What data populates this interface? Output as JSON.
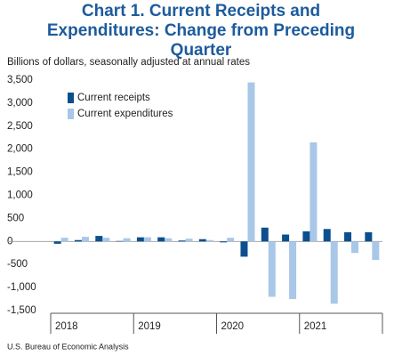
{
  "chart_data": {
    "type": "bar",
    "title": "Chart 1. Current Receipts and Expenditures: Change from Preceding Quarter",
    "subtitle": "Billions of dollars, seasonally adjusted at annual rates",
    "source": "U.S. Bureau of Economic Analysis",
    "categories": [
      null,
      null,
      null,
      null,
      null,
      null,
      null,
      null,
      null,
      null,
      null,
      null,
      null,
      null,
      null,
      null
    ],
    "groups": [
      "2018",
      "2019",
      "2020",
      "2021"
    ],
    "series": [
      {
        "name": "Current receipts",
        "color": "#0b4f8f",
        "values": [
          -50,
          30,
          120,
          10,
          90,
          90,
          20,
          50,
          -20,
          -330,
          300,
          150,
          220,
          270,
          200,
          200
        ]
      },
      {
        "name": "Current expenditures",
        "color": "#a9c7e8",
        "values": [
          80,
          100,
          80,
          70,
          90,
          70,
          60,
          30,
          80,
          3450,
          -1200,
          -1250,
          2150,
          -1350,
          -250,
          -400
        ]
      }
    ],
    "ylim": [
      -1500,
      3500
    ],
    "yticks": [
      {
        "value": -1500,
        "label": "-1,500"
      },
      {
        "value": -1000,
        "label": "-1,000"
      },
      -500,
      0,
      500,
      {
        "value": 1000,
        "label": "1,000"
      },
      {
        "value": 1500,
        "label": "1,500"
      },
      {
        "value": 2000,
        "label": "2,000"
      },
      {
        "value": 2500,
        "label": "2,500"
      },
      {
        "value": 3000,
        "label": "3,000"
      },
      {
        "value": 3500,
        "label": "3,500"
      }
    ],
    "grid": false,
    "legend": "top-left"
  }
}
